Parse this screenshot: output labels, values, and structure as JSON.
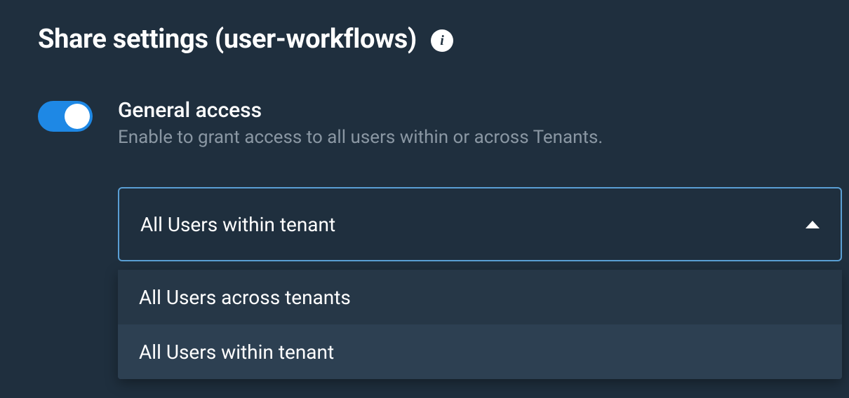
{
  "header": {
    "title": "Share settings (user-workflows)",
    "info_glyph": "i"
  },
  "general_access": {
    "title": "General access",
    "description": "Enable to grant access to all users within or across Tenants.",
    "toggle_on": true
  },
  "scope_select": {
    "selected_label": "All Users within tenant",
    "expanded": true,
    "options": [
      {
        "label": "All Users across tenants",
        "selected": false
      },
      {
        "label": "All Users within tenant",
        "selected": true
      }
    ]
  },
  "colors": {
    "background": "#1f2f3e",
    "text_primary": "#ffffff",
    "text_secondary": "#8a97a3",
    "accent": "#1e88e5",
    "dropdown_border": "#5a9fd4",
    "panel_bg": "#263747",
    "option_selected_bg": "#2d4052"
  }
}
